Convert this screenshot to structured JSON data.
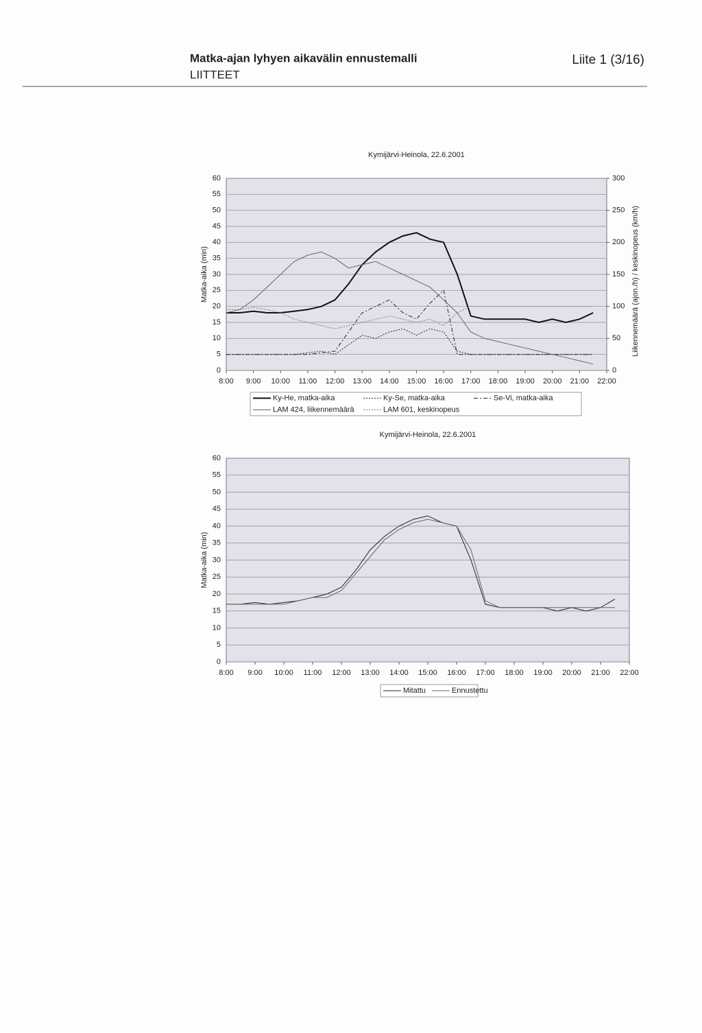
{
  "header": {
    "title": "Matka-ajan lyhyen aikavälin ennustemalli",
    "subtitle": "LIITTEET",
    "page": "Liite 1  (3/16)"
  },
  "chart_data": [
    {
      "type": "line",
      "title": "Kymijärvi-Heinola, 22.6.2001",
      "y_label": "Matka-aika (min)",
      "y2_label": "Liikennemäärä (ajon./h) / keskinopeus (km/h)",
      "x": [
        8,
        8.5,
        9,
        9.5,
        10,
        10.5,
        11,
        11.5,
        12,
        12.5,
        13,
        13.5,
        14,
        14.5,
        15,
        15.5,
        16,
        16.5,
        17,
        17.5,
        18,
        18.5,
        19,
        19.5,
        20,
        20.5,
        21,
        21.5
      ],
      "xlim": [
        8,
        22
      ],
      "xticks": [
        {
          "value": 8,
          "label": "8:00"
        },
        {
          "value": 9,
          "label": "9:00"
        },
        {
          "value": 10,
          "label": "10:00"
        },
        {
          "value": 11,
          "label": "11:00"
        },
        {
          "value": 12,
          "label": "12:00"
        },
        {
          "value": 13,
          "label": "13:00"
        },
        {
          "value": 14,
          "label": "14:00"
        },
        {
          "value": 15,
          "label": "15:00"
        },
        {
          "value": 16,
          "label": "16:00"
        },
        {
          "value": 17,
          "label": "17:00"
        },
        {
          "value": 18,
          "label": "18:00"
        },
        {
          "value": 19,
          "label": "19:00"
        },
        {
          "value": 20,
          "label": "20:00"
        },
        {
          "value": 21,
          "label": "21:00"
        },
        {
          "value": 22,
          "label": "22:00"
        }
      ],
      "ylim": [
        0,
        60
      ],
      "yticks": [
        0,
        5,
        10,
        15,
        20,
        25,
        30,
        35,
        40,
        45,
        50,
        55,
        60
      ],
      "y2lim": [
        0,
        300
      ],
      "y2ticks": [
        0,
        50,
        100,
        150,
        200,
        250,
        300
      ],
      "grid": true,
      "legend": "bottom",
      "series": [
        {
          "name": "Ky-He, matka-aika",
          "color": "#111111",
          "style": "solid",
          "width": 2,
          "values": [
            18,
            18,
            18.5,
            18,
            18,
            18.5,
            19,
            20,
            22,
            27,
            33,
            37,
            40,
            42,
            43,
            41,
            40,
            30,
            17,
            16,
            16,
            16,
            16,
            15,
            16,
            15,
            16,
            18
          ]
        },
        {
          "name": "Ky-Se, matka-aika",
          "color": "#222222",
          "style": "dotted",
          "width": 1,
          "values": [
            5,
            5,
            5,
            5,
            5,
            5,
            5.5,
            6,
            5,
            8,
            11,
            10,
            12,
            13,
            11,
            13,
            12,
            6,
            5,
            5,
            5,
            5,
            5,
            5,
            5,
            5,
            5,
            5
          ]
        },
        {
          "name": "Se-Vi, matka-aika",
          "color": "#222222",
          "style": "dashdot",
          "width": 1,
          "values": [
            5,
            5,
            5,
            5,
            5,
            5,
            5,
            5.5,
            6,
            12,
            18,
            20,
            22,
            18,
            16,
            21,
            25,
            5,
            5,
            5,
            5,
            5,
            5,
            5,
            5,
            5,
            5,
            5
          ]
        },
        {
          "name": "LAM 424, liikennemäärä",
          "color": "#666666",
          "style": "solid",
          "width": 1,
          "axis": "y2",
          "values": [
            90,
            95,
            110,
            130,
            150,
            170,
            180,
            185,
            175,
            160,
            165,
            170,
            160,
            150,
            140,
            130,
            110,
            90,
            60,
            50,
            45,
            40,
            35,
            30,
            25,
            20,
            15,
            10
          ]
        },
        {
          "name": "LAM 601, keskinopeus",
          "color": "#777777",
          "style": "dotted",
          "width": 1,
          "axis": "y2",
          "values": [
            95,
            95,
            98,
            95,
            90,
            80,
            75,
            70,
            65,
            70,
            75,
            80,
            85,
            80,
            75,
            80,
            70,
            90,
            100,
            100,
            100,
            100,
            100,
            100,
            100,
            100,
            100,
            100
          ]
        }
      ]
    },
    {
      "type": "line",
      "title": "Kymijärvi-Heinola, 22.6.2001",
      "y_label": "Matka-aika (min)",
      "x": [
        8,
        8.5,
        9,
        9.5,
        10,
        10.5,
        11,
        11.5,
        12,
        12.5,
        13,
        13.5,
        14,
        14.5,
        15,
        15.5,
        16,
        16.5,
        17,
        17.5,
        18,
        18.5,
        19,
        19.5,
        20,
        20.5,
        21,
        21.5
      ],
      "xlim": [
        8,
        22
      ],
      "xticks": [
        {
          "value": 8,
          "label": "8:00"
        },
        {
          "value": 9,
          "label": "9:00"
        },
        {
          "value": 10,
          "label": "10:00"
        },
        {
          "value": 11,
          "label": "11:00"
        },
        {
          "value": 12,
          "label": "12:00"
        },
        {
          "value": 13,
          "label": "13:00"
        },
        {
          "value": 14,
          "label": "14:00"
        },
        {
          "value": 15,
          "label": "15:00"
        },
        {
          "value": 16,
          "label": "16:00"
        },
        {
          "value": 17,
          "label": "17:00"
        },
        {
          "value": 18,
          "label": "18:00"
        },
        {
          "value": 19,
          "label": "19:00"
        },
        {
          "value": 20,
          "label": "20:00"
        },
        {
          "value": 21,
          "label": "21:00"
        },
        {
          "value": 22,
          "label": "22:00"
        }
      ],
      "ylim": [
        0,
        60
      ],
      "yticks": [
        0,
        5,
        10,
        15,
        20,
        25,
        30,
        35,
        40,
        45,
        50,
        55,
        60
      ],
      "grid": true,
      "legend": "bottom",
      "series": [
        {
          "name": "Mitattu",
          "color": "#222222",
          "style": "solid",
          "width": 1,
          "values": [
            17,
            17,
            17.5,
            17,
            17.5,
            18,
            19,
            20,
            22,
            27,
            33,
            37,
            40,
            42,
            43,
            41,
            40,
            30,
            17,
            16,
            16,
            16,
            16,
            15,
            16,
            15,
            16,
            18.5
          ]
        },
        {
          "name": "Ennustettu",
          "color": "#666666",
          "style": "solid",
          "width": 1,
          "values": [
            17,
            17,
            17,
            17,
            17,
            18,
            19,
            19,
            21,
            26,
            31,
            36,
            39,
            41,
            42,
            41,
            40,
            33,
            18,
            16,
            16,
            16,
            16,
            16,
            16,
            16,
            16,
            16
          ]
        }
      ]
    }
  ]
}
